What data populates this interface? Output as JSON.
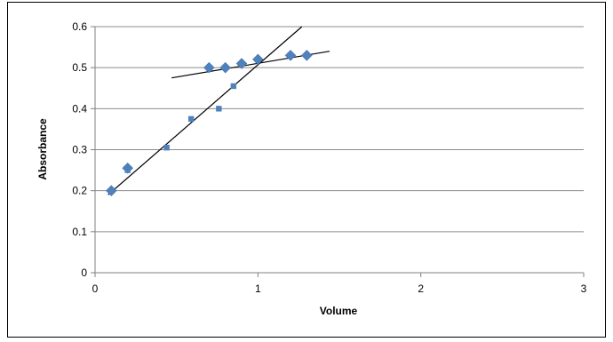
{
  "chart_data": {
    "type": "scatter",
    "xlabel": "Volume",
    "ylabel": "Absorbance",
    "xlim": [
      0,
      3
    ],
    "ylim": [
      0,
      0.6
    ],
    "x_ticks": [
      "0",
      "1",
      "2",
      "3"
    ],
    "y_ticks": [
      "0",
      "0.1",
      "0.2",
      "0.3",
      "0.4",
      "0.5",
      "0.6"
    ],
    "grid": "horizontal",
    "legend": "none",
    "series": [
      {
        "marker": "diamond",
        "color": "#4f81bd",
        "points": [
          {
            "x": 0.1,
            "y": 0.2
          },
          {
            "x": 0.2,
            "y": 0.255
          },
          {
            "x": 0.7,
            "y": 0.5
          },
          {
            "x": 0.8,
            "y": 0.5
          },
          {
            "x": 0.9,
            "y": 0.51
          },
          {
            "x": 1.0,
            "y": 0.52
          },
          {
            "x": 1.2,
            "y": 0.53
          },
          {
            "x": 1.3,
            "y": 0.53
          }
        ]
      },
      {
        "marker": "square",
        "color": "#4f81bd",
        "points": [
          {
            "x": 0.1,
            "y": 0.2
          },
          {
            "x": 0.2,
            "y": 0.25
          },
          {
            "x": 0.44,
            "y": 0.305
          },
          {
            "x": 0.59,
            "y": 0.375
          },
          {
            "x": 0.76,
            "y": 0.4
          },
          {
            "x": 0.85,
            "y": 0.455
          },
          {
            "x": 1.0,
            "y": 0.52
          }
        ]
      }
    ],
    "trendlines": [
      {
        "color": "#000000",
        "from": {
          "x": 0.08,
          "y": 0.19
        },
        "to": {
          "x": 1.27,
          "y": 0.6
        }
      },
      {
        "color": "#000000",
        "from": {
          "x": 0.47,
          "y": 0.475
        },
        "to": {
          "x": 1.44,
          "y": 0.54
        }
      }
    ],
    "colors": {
      "grid": "#8c8c8c",
      "axis": "#808080",
      "frame": "#000000"
    }
  }
}
